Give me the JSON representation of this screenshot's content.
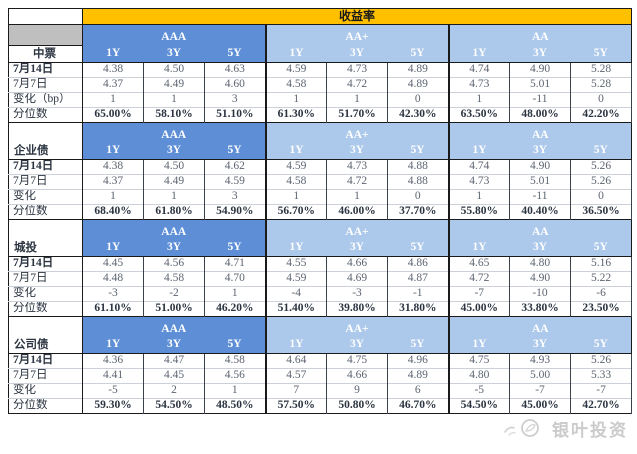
{
  "colors": {
    "yellow": "#FFC000",
    "blue-dark": "#5E8FD6",
    "blue-light": "#ACC8EA",
    "gray": "#BFBFBF"
  },
  "watermark": {
    "text": "银叶投资"
  },
  "chart_data": {
    "type": "table",
    "title": "收益率",
    "column_groups": [
      "AAA",
      "AA+",
      "AA"
    ],
    "columns": [
      "1Y",
      "3Y",
      "5Y",
      "1Y",
      "3Y",
      "5Y",
      "1Y",
      "3Y",
      "5Y"
    ],
    "sections": [
      {
        "name": "中票",
        "row_labels": [
          "7月14日",
          "7月7日",
          "变化（bp）",
          "分位数"
        ],
        "rows": [
          [
            "4.38",
            "4.50",
            "4.63",
            "4.59",
            "4.73",
            "4.89",
            "4.74",
            "4.90",
            "5.28"
          ],
          [
            "4.37",
            "4.49",
            "4.60",
            "4.58",
            "4.72",
            "4.89",
            "4.73",
            "5.01",
            "5.28"
          ],
          [
            "1",
            "1",
            "3",
            "1",
            "1",
            "0",
            "1",
            "-11",
            "0"
          ],
          [
            "65.00%",
            "58.10%",
            "51.10%",
            "61.30%",
            "51.70%",
            "42.30%",
            "63.50%",
            "48.00%",
            "42.20%"
          ]
        ]
      },
      {
        "name": "企业债",
        "row_labels": [
          "7月14日",
          "7月7日",
          "变化",
          "分位数"
        ],
        "rows": [
          [
            "4.38",
            "4.50",
            "4.62",
            "4.59",
            "4.73",
            "4.88",
            "4.74",
            "4.90",
            "5.26"
          ],
          [
            "4.37",
            "4.49",
            "4.59",
            "4.58",
            "4.72",
            "4.88",
            "4.73",
            "5.01",
            "5.26"
          ],
          [
            "1",
            "1",
            "3",
            "1",
            "1",
            "0",
            "1",
            "-11",
            "0"
          ],
          [
            "68.40%",
            "61.80%",
            "54.90%",
            "56.70%",
            "46.00%",
            "37.70%",
            "55.80%",
            "40.40%",
            "36.50%"
          ]
        ]
      },
      {
        "name": "城投",
        "row_labels": [
          "7月14日",
          "7月7日",
          "变化",
          "分位数"
        ],
        "rows": [
          [
            "4.45",
            "4.56",
            "4.71",
            "4.55",
            "4.66",
            "4.86",
            "4.65",
            "4.80",
            "5.16"
          ],
          [
            "4.48",
            "4.58",
            "4.70",
            "4.59",
            "4.69",
            "4.87",
            "4.72",
            "4.90",
            "5.22"
          ],
          [
            "-3",
            "-2",
            "1",
            "-4",
            "-3",
            "-1",
            "-7",
            "-10",
            "-6"
          ],
          [
            "61.10%",
            "51.00%",
            "46.20%",
            "51.40%",
            "39.80%",
            "31.80%",
            "45.00%",
            "33.80%",
            "23.50%"
          ]
        ]
      },
      {
        "name": "公司债",
        "row_labels": [
          "7月14日",
          "7月7日",
          "变化",
          "分位数"
        ],
        "rows": [
          [
            "4.36",
            "4.47",
            "4.58",
            "4.64",
            "4.75",
            "4.96",
            "4.75",
            "4.93",
            "5.26"
          ],
          [
            "4.41",
            "4.45",
            "4.56",
            "4.57",
            "4.66",
            "4.89",
            "4.80",
            "5.00",
            "5.33"
          ],
          [
            "-5",
            "2",
            "1",
            "7",
            "9",
            "6",
            "-5",
            "-7",
            "-7"
          ],
          [
            "59.30%",
            "54.50%",
            "48.50%",
            "57.50%",
            "50.80%",
            "46.70%",
            "54.50%",
            "45.00%",
            "42.70%"
          ]
        ]
      }
    ]
  }
}
